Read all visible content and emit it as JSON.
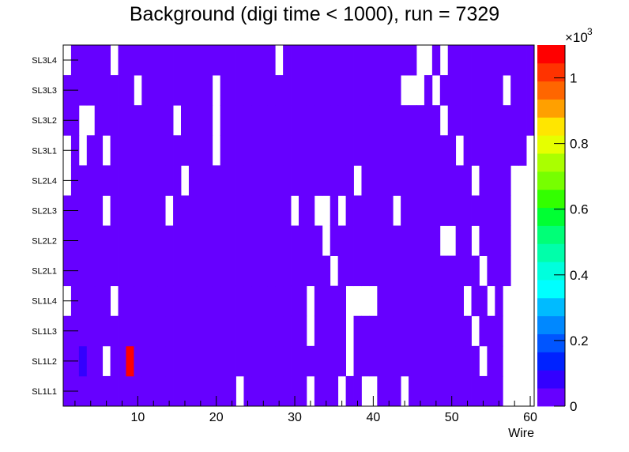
{
  "chart_data": {
    "type": "heatmap",
    "title": "Background (digi time < 1000), run = 7329",
    "xlabel": "Wire",
    "ylabel": "",
    "xlim": [
      0.5,
      60.5
    ],
    "x_bins": 60,
    "x_ticks": [
      10,
      20,
      30,
      40,
      50,
      60
    ],
    "y_categories": [
      "SL1L1",
      "SL1L2",
      "SL1L3",
      "SL1L4",
      "SL2L1",
      "SL2L2",
      "SL2L3",
      "SL2L4",
      "SL3L1",
      "SL3L2",
      "SL3L3",
      "SL3L4"
    ],
    "z_range": [
      0,
      1100
    ],
    "z_ticks": [
      0,
      0.2,
      0.4,
      0.6,
      0.8,
      1
    ],
    "z_tick_labels": [
      "0",
      "0.2",
      "0.4",
      "0.6",
      "0.8",
      "1"
    ],
    "z_multiplier": "×10",
    "z_multiplier_exp": "3",
    "default_value_approx": 20,
    "empty_bins": {
      "SL3L4": [
        1,
        7,
        28,
        46,
        47,
        49
      ],
      "SL3L3": [
        10,
        20,
        44,
        45,
        46,
        48,
        57
      ],
      "SL3L2": [
        3,
        4,
        15,
        20,
        49
      ],
      "SL3L1": [
        1,
        3,
        6,
        20,
        51,
        60
      ],
      "SL2L4": [
        1,
        16,
        38,
        53,
        58,
        59,
        60
      ],
      "SL2L3": [
        6,
        14,
        30,
        33,
        34,
        36,
        43,
        58,
        59,
        60
      ],
      "SL2L2": [
        34,
        49,
        50,
        53,
        58,
        59,
        60
      ],
      "SL2L1": [
        35,
        54,
        58,
        59,
        60
      ],
      "SL1L4": [
        1,
        7,
        32,
        37,
        38,
        39,
        40,
        52,
        55,
        57,
        58,
        59,
        60
      ],
      "SL1L3": [
        32,
        37,
        53,
        57,
        58,
        59,
        60
      ],
      "SL1L2": [
        6,
        37,
        54,
        57,
        58,
        59,
        60
      ],
      "SL1L1": [
        23,
        32,
        36,
        39,
        40,
        44,
        57,
        58,
        59,
        60
      ]
    },
    "special_bins": [
      {
        "row": "SL1L2",
        "wire": 3,
        "value": 80
      },
      {
        "row": "SL1L2",
        "wire": 9,
        "value": 1070
      }
    ],
    "palette": [
      "#6600ff",
      "#3300ff",
      "#0022ff",
      "#0055ff",
      "#0088ff",
      "#00bbff",
      "#00ffff",
      "#00ffdd",
      "#00ffaa",
      "#00ff77",
      "#00ff33",
      "#33ff00",
      "#77ff00",
      "#aaff00",
      "#e6ff00",
      "#ffe600",
      "#ffa000",
      "#ff6600",
      "#ff3300",
      "#ff0000"
    ]
  }
}
